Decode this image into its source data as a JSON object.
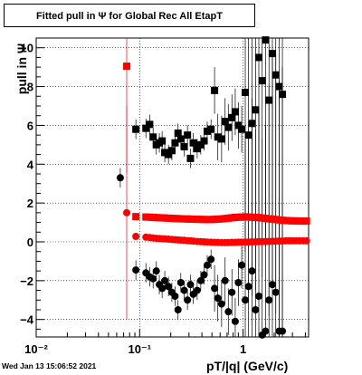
{
  "title": "Fitted pull in  Ψ  for Global Rec All EtapT",
  "timestamp": "Wed Jan 13 15:06:52 2021",
  "chart_data": {
    "type": "scatter",
    "title": "Fitted pull in  Ψ  for Global Rec All EtapT",
    "xlabel": "pT/|q| (GeV/c)",
    "ylabel": "pull in  Ψ",
    "xscale": "log",
    "xlim": [
      0.01,
      4.3
    ],
    "ylim": [
      -4.9,
      10.5
    ],
    "x_tick_labels": [
      "10⁻²",
      "10⁻¹",
      "1"
    ],
    "x_ticks": [
      0.01,
      0.1,
      1
    ],
    "y_ticks": [
      -4,
      -2,
      0,
      2,
      4,
      6,
      8,
      10
    ],
    "y_tick_labels": [
      "−4",
      "−2",
      "0",
      "2",
      "4",
      "6",
      "8",
      "10"
    ],
    "grid": true,
    "series": [
      {
        "color": "#ff0000",
        "marker": "square",
        "points": [
          [
            0.075,
            9.05
          ],
          [
            0.092,
            1.3
          ],
          [
            0.115,
            1.28
          ],
          [
            0.125,
            1.27
          ],
          [
            0.135,
            1.26
          ],
          [
            0.145,
            1.25
          ],
          [
            0.155,
            1.24
          ],
          [
            0.165,
            1.24
          ],
          [
            0.175,
            1.23
          ],
          [
            0.19,
            1.22
          ],
          [
            0.205,
            1.21
          ],
          [
            0.22,
            1.2
          ],
          [
            0.235,
            1.2
          ],
          [
            0.25,
            1.19
          ],
          [
            0.27,
            1.18
          ],
          [
            0.29,
            1.18
          ],
          [
            0.31,
            1.17
          ],
          [
            0.33,
            1.17
          ],
          [
            0.36,
            1.16
          ],
          [
            0.39,
            1.16
          ],
          [
            0.42,
            1.15
          ],
          [
            0.45,
            1.15
          ],
          [
            0.49,
            1.15
          ],
          [
            0.53,
            1.16
          ],
          [
            0.57,
            1.17
          ],
          [
            0.62,
            1.18
          ],
          [
            0.67,
            1.2
          ],
          [
            0.72,
            1.22
          ],
          [
            0.78,
            1.24
          ],
          [
            0.84,
            1.26
          ],
          [
            0.9,
            1.27
          ],
          [
            0.97,
            1.28
          ],
          [
            1.05,
            1.29
          ],
          [
            1.13,
            1.28
          ],
          [
            1.22,
            1.27
          ],
          [
            1.32,
            1.26
          ],
          [
            1.42,
            1.25
          ],
          [
            1.53,
            1.23
          ],
          [
            1.65,
            1.21
          ],
          [
            1.78,
            1.19
          ],
          [
            1.92,
            1.17
          ],
          [
            2.07,
            1.15
          ],
          [
            2.23,
            1.13
          ],
          [
            2.4,
            1.11
          ],
          [
            2.6,
            1.1
          ],
          [
            2.8,
            1.09
          ],
          [
            3.0,
            1.08
          ],
          [
            3.25,
            1.08
          ],
          [
            3.5,
            1.07
          ],
          [
            3.8,
            1.07
          ],
          [
            4.1,
            1.07
          ]
        ]
      },
      {
        "color": "#ff0000",
        "marker": "circle",
        "points": [
          [
            0.075,
            1.5
          ],
          [
            0.092,
            0.28
          ],
          [
            0.115,
            0.24
          ],
          [
            0.125,
            0.22
          ],
          [
            0.135,
            0.2
          ],
          [
            0.145,
            0.18
          ],
          [
            0.155,
            0.17
          ],
          [
            0.165,
            0.16
          ],
          [
            0.175,
            0.15
          ],
          [
            0.19,
            0.14
          ],
          [
            0.205,
            0.12
          ],
          [
            0.22,
            0.11
          ],
          [
            0.235,
            0.1
          ],
          [
            0.25,
            0.09
          ],
          [
            0.27,
            0.08
          ],
          [
            0.29,
            0.06
          ],
          [
            0.31,
            0.05
          ],
          [
            0.33,
            0.04
          ],
          [
            0.36,
            0.02
          ],
          [
            0.39,
            0.01
          ],
          [
            0.42,
            0.0
          ],
          [
            0.45,
            -0.01
          ],
          [
            0.49,
            -0.02
          ],
          [
            0.53,
            -0.03
          ],
          [
            0.57,
            -0.03
          ],
          [
            0.62,
            -0.04
          ],
          [
            0.67,
            -0.04
          ],
          [
            0.72,
            -0.04
          ],
          [
            0.78,
            -0.03
          ],
          [
            0.84,
            -0.03
          ],
          [
            0.9,
            -0.02
          ],
          [
            0.97,
            -0.02
          ],
          [
            1.05,
            -0.01
          ],
          [
            1.13,
            -0.01
          ],
          [
            1.22,
            0.0
          ],
          [
            1.32,
            0.0
          ],
          [
            1.42,
            0.01
          ],
          [
            1.53,
            0.01
          ],
          [
            1.65,
            0.02
          ],
          [
            1.78,
            0.02
          ],
          [
            1.92,
            0.03
          ],
          [
            2.07,
            0.03
          ],
          [
            2.23,
            0.04
          ],
          [
            2.4,
            0.04
          ],
          [
            2.6,
            0.05
          ],
          [
            2.8,
            0.05
          ],
          [
            3.0,
            0.05
          ],
          [
            3.25,
            0.05
          ],
          [
            3.5,
            0.05
          ],
          [
            3.8,
            0.05
          ],
          [
            4.1,
            0.05
          ]
        ]
      },
      {
        "color": "#000000",
        "marker": "square",
        "points": [
          [
            0.092,
            5.8
          ],
          [
            0.115,
            5.85
          ],
          [
            0.125,
            6.05
          ],
          [
            0.135,
            5.4
          ],
          [
            0.145,
            5.0
          ],
          [
            0.155,
            5.1
          ],
          [
            0.165,
            5.2
          ],
          [
            0.175,
            4.6
          ],
          [
            0.19,
            4.5
          ],
          [
            0.205,
            4.7
          ],
          [
            0.22,
            5.1
          ],
          [
            0.235,
            5.6
          ],
          [
            0.25,
            5.3
          ],
          [
            0.27,
            4.9
          ],
          [
            0.29,
            5.5
          ],
          [
            0.31,
            4.3
          ],
          [
            0.33,
            5.1
          ],
          [
            0.36,
            4.8
          ],
          [
            0.39,
            5.0
          ],
          [
            0.42,
            5.2
          ],
          [
            0.45,
            5.7
          ],
          [
            0.49,
            5.8
          ],
          [
            0.53,
            7.8
          ],
          [
            0.57,
            5.4
          ],
          [
            0.62,
            5.3
          ],
          [
            0.67,
            6.2
          ],
          [
            0.72,
            5.9
          ],
          [
            0.78,
            6.4
          ],
          [
            0.84,
            6.7
          ],
          [
            0.9,
            6.0
          ],
          [
            0.97,
            5.8
          ],
          [
            1.05,
            7.7
          ],
          [
            1.13,
            5.5
          ],
          [
            1.22,
            6.1
          ],
          [
            1.32,
            6.8
          ],
          [
            1.42,
            9.5
          ],
          [
            1.53,
            8.3
          ],
          [
            1.65,
            10.4
          ],
          [
            1.78,
            7.3
          ],
          [
            1.92,
            9.7
          ],
          [
            2.07,
            8.6
          ],
          [
            2.23,
            8.0
          ],
          [
            2.4,
            7.6
          ]
        ]
      },
      {
        "color": "#000000",
        "marker": "circle",
        "points": [
          [
            0.065,
            3.3
          ],
          [
            0.092,
            -1.45
          ],
          [
            0.115,
            -1.6
          ],
          [
            0.125,
            -1.8
          ],
          [
            0.135,
            -1.9
          ],
          [
            0.145,
            -1.5
          ],
          [
            0.155,
            -2.2
          ],
          [
            0.165,
            -2.4
          ],
          [
            0.175,
            -2.0
          ],
          [
            0.19,
            -2.3
          ],
          [
            0.205,
            -2.6
          ],
          [
            0.22,
            -2.8
          ],
          [
            0.235,
            -3.5
          ],
          [
            0.25,
            -2.1
          ],
          [
            0.27,
            -2.5
          ],
          [
            0.29,
            -3.0
          ],
          [
            0.31,
            -2.2
          ],
          [
            0.33,
            -2.7
          ],
          [
            0.36,
            -2.5
          ],
          [
            0.39,
            -2.0
          ],
          [
            0.42,
            -1.7
          ],
          [
            0.45,
            -1.2
          ],
          [
            0.49,
            -0.9
          ],
          [
            0.53,
            -2.4
          ],
          [
            0.57,
            -2.9
          ],
          [
            0.62,
            -3.2
          ],
          [
            0.67,
            -2.0
          ],
          [
            0.72,
            -3.6
          ],
          [
            0.78,
            -2.6
          ],
          [
            0.84,
            -4.1
          ],
          [
            0.9,
            -2.1
          ],
          [
            0.97,
            -1.2
          ],
          [
            1.05,
            -3.0
          ],
          [
            1.13,
            -2.3
          ],
          [
            1.22,
            -1.5
          ],
          [
            1.32,
            -3.5
          ],
          [
            1.42,
            -2.8
          ],
          [
            1.53,
            -4.8
          ],
          [
            1.65,
            -4.6
          ],
          [
            1.78,
            -3.0
          ],
          [
            1.92,
            -2.2
          ],
          [
            2.07,
            -2.6
          ],
          [
            2.23,
            -4.6
          ],
          [
            2.4,
            -4.6
          ]
        ]
      }
    ]
  }
}
